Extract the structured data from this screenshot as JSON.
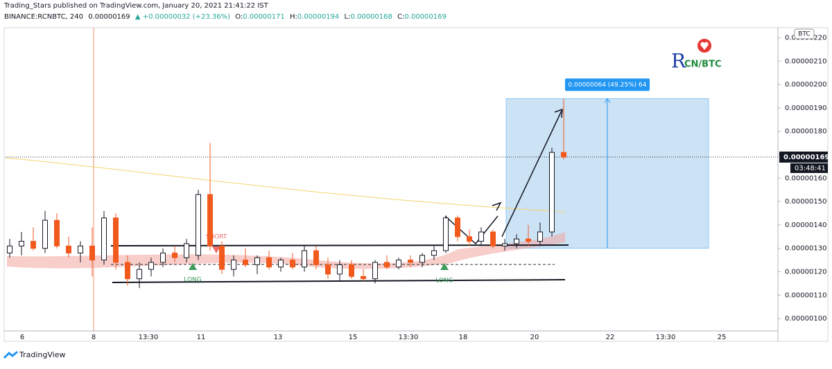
{
  "header": {
    "published": "Trading_Stars published on TradingView.com, January 20, 2021 21:41:22 IST",
    "symbol": "BINANCE:RCNBTC, 240",
    "price": "0.00000169",
    "change": "▲ +0.00000032 (+23.36%)",
    "o_label": "O:",
    "o": "0.00000171",
    "h_label": "H:",
    "h": "0.00000194",
    "l_label": "L:",
    "l": "0.00000168",
    "c_label": "C:",
    "c": "0.00000169"
  },
  "chart_data": {
    "type": "candlestick",
    "x_labels": [
      "6",
      "8",
      "13:30",
      "11",
      "13",
      "15",
      "13:30",
      "18",
      "20",
      "22",
      "13:30",
      "25"
    ],
    "open": [
      1.28e-06,
      1.31e-06,
      1.33e-06,
      1.3e-06,
      1.42e-06,
      1.31e-06,
      1.28e-06,
      1.31e-06,
      1.25e-06,
      1.43e-06,
      1.24e-06,
      1.17e-06,
      1.21e-06,
      1.24e-06,
      1.28e-06,
      1.26e-06,
      1.27e-06,
      1.53e-06,
      1.31e-06,
      1.21e-06,
      1.25e-06,
      1.23e-06,
      1.26e-06,
      1.22e-06,
      1.25e-06,
      1.22e-06,
      1.29e-06,
      1.23e-06,
      1.19e-06,
      1.23e-06,
      1.18e-06,
      1.17e-06,
      1.24e-06,
      1.22e-06,
      1.25e-06,
      1.24e-06,
      1.27e-06,
      1.29e-06,
      1.43e-06,
      1.35e-06,
      1.33e-06,
      1.37e-06,
      1.31e-06,
      1.32e-06,
      1.34e-06,
      1.33e-06,
      1.37e-06,
      1.71e-06
    ],
    "high": [
      1.34e-06,
      1.37e-06,
      1.39e-06,
      1.46e-06,
      1.45e-06,
      1.35e-06,
      1.33e-06,
      1.39e-06,
      1.46e-06,
      1.45e-06,
      1.27e-06,
      1.24e-06,
      1.26e-06,
      1.3e-06,
      1.31e-06,
      1.34e-06,
      1.55e-06,
      1.75e-06,
      1.33e-06,
      1.27e-06,
      1.3e-06,
      1.27e-06,
      1.29e-06,
      1.26e-06,
      1.28e-06,
      1.31e-06,
      1.31e-06,
      1.26e-06,
      1.25e-06,
      1.25e-06,
      1.21e-06,
      1.25e-06,
      1.27e-06,
      1.26e-06,
      1.27e-06,
      1.28e-06,
      1.31e-06,
      1.44e-06,
      1.44e-06,
      1.38e-06,
      1.39e-06,
      1.38e-06,
      1.34e-06,
      1.36e-06,
      1.4e-06,
      1.41e-06,
      1.73e-06,
      1.94e-06
    ],
    "low": [
      1.26e-06,
      1.27e-06,
      1.29e-06,
      1.28e-06,
      1.3e-06,
      1.26e-06,
      1.24e-06,
      1.18e-06,
      1.23e-06,
      1.21e-06,
      1.14e-06,
      1.13e-06,
      1.18e-06,
      1.22e-06,
      1.24e-06,
      1.24e-06,
      1.25e-06,
      1.29e-06,
      1.19e-06,
      1.18e-06,
      1.22e-06,
      1.19e-06,
      1.21e-06,
      1.2e-06,
      1.21e-06,
      1.2e-06,
      1.21e-06,
      1.17e-06,
      1.16e-06,
      1.17e-06,
      1.16e-06,
      1.15e-06,
      1.21e-06,
      1.21e-06,
      1.22e-06,
      1.22e-06,
      1.25e-06,
      1.28e-06,
      1.33e-06,
      1.31e-06,
      1.31e-06,
      1.3e-06,
      1.29e-06,
      1.3e-06,
      1.31e-06,
      1.31e-06,
      1.35e-06,
      1.68e-06
    ],
    "close": [
      1.31e-06,
      1.33e-06,
      1.3e-06,
      1.42e-06,
      1.31e-06,
      1.28e-06,
      1.31e-06,
      1.25e-06,
      1.43e-06,
      1.24e-06,
      1.17e-06,
      1.21e-06,
      1.24e-06,
      1.28e-06,
      1.26e-06,
      1.32e-06,
      1.53e-06,
      1.31e-06,
      1.21e-06,
      1.25e-06,
      1.23e-06,
      1.26e-06,
      1.22e-06,
      1.25e-06,
      1.22e-06,
      1.29e-06,
      1.23e-06,
      1.19e-06,
      1.23e-06,
      1.18e-06,
      1.17e-06,
      1.24e-06,
      1.22e-06,
      1.25e-06,
      1.24e-06,
      1.27e-06,
      1.29e-06,
      1.43e-06,
      1.35e-06,
      1.33e-06,
      1.37e-06,
      1.31e-06,
      1.32e-06,
      1.34e-06,
      1.33e-06,
      1.37e-06,
      1.71e-06,
      1.69e-06
    ],
    "up_color": "#ffffff",
    "down_color": "#f2591d",
    "ylim": [
      9.47e-07,
      2.243e-06
    ],
    "yticks": [
      {
        "value": 1e-06,
        "label": "0.00000100"
      },
      {
        "value": 1.1e-06,
        "label": "0.00000110"
      },
      {
        "value": 1.2e-06,
        "label": "0.00000120"
      },
      {
        "value": 1.3e-06,
        "label": "0.00000130"
      },
      {
        "value": 1.4e-06,
        "label": "0.00000140"
      },
      {
        "value": 1.5e-06,
        "label": "0.00000150"
      },
      {
        "value": 1.6e-06,
        "label": "0.00000160"
      },
      {
        "value": 1.7e-06,
        "label": "0.00000170"
      },
      {
        "value": 1.8e-06,
        "label": "0.00000180"
      },
      {
        "value": 1.9e-06,
        "label": "0.00000190"
      },
      {
        "value": 2e-06,
        "label": "0.00000200"
      },
      {
        "value": 2.1e-06,
        "label": "0.00000210"
      },
      {
        "value": 2.2e-06,
        "label": "0.00000220"
      }
    ],
    "last_price": 1.69e-06,
    "countdown": "03:48:41",
    "currency": "BTC",
    "measure": {
      "from": 1.3e-06,
      "to": 1.94e-06,
      "label": "0.00000064 (49.25%) 64"
    },
    "annotations": [
      "SHORT",
      "LONG",
      "LONG"
    ],
    "logo": {
      "initial": "R",
      "rest": "CN/BTC"
    }
  },
  "footer": "TradingView"
}
